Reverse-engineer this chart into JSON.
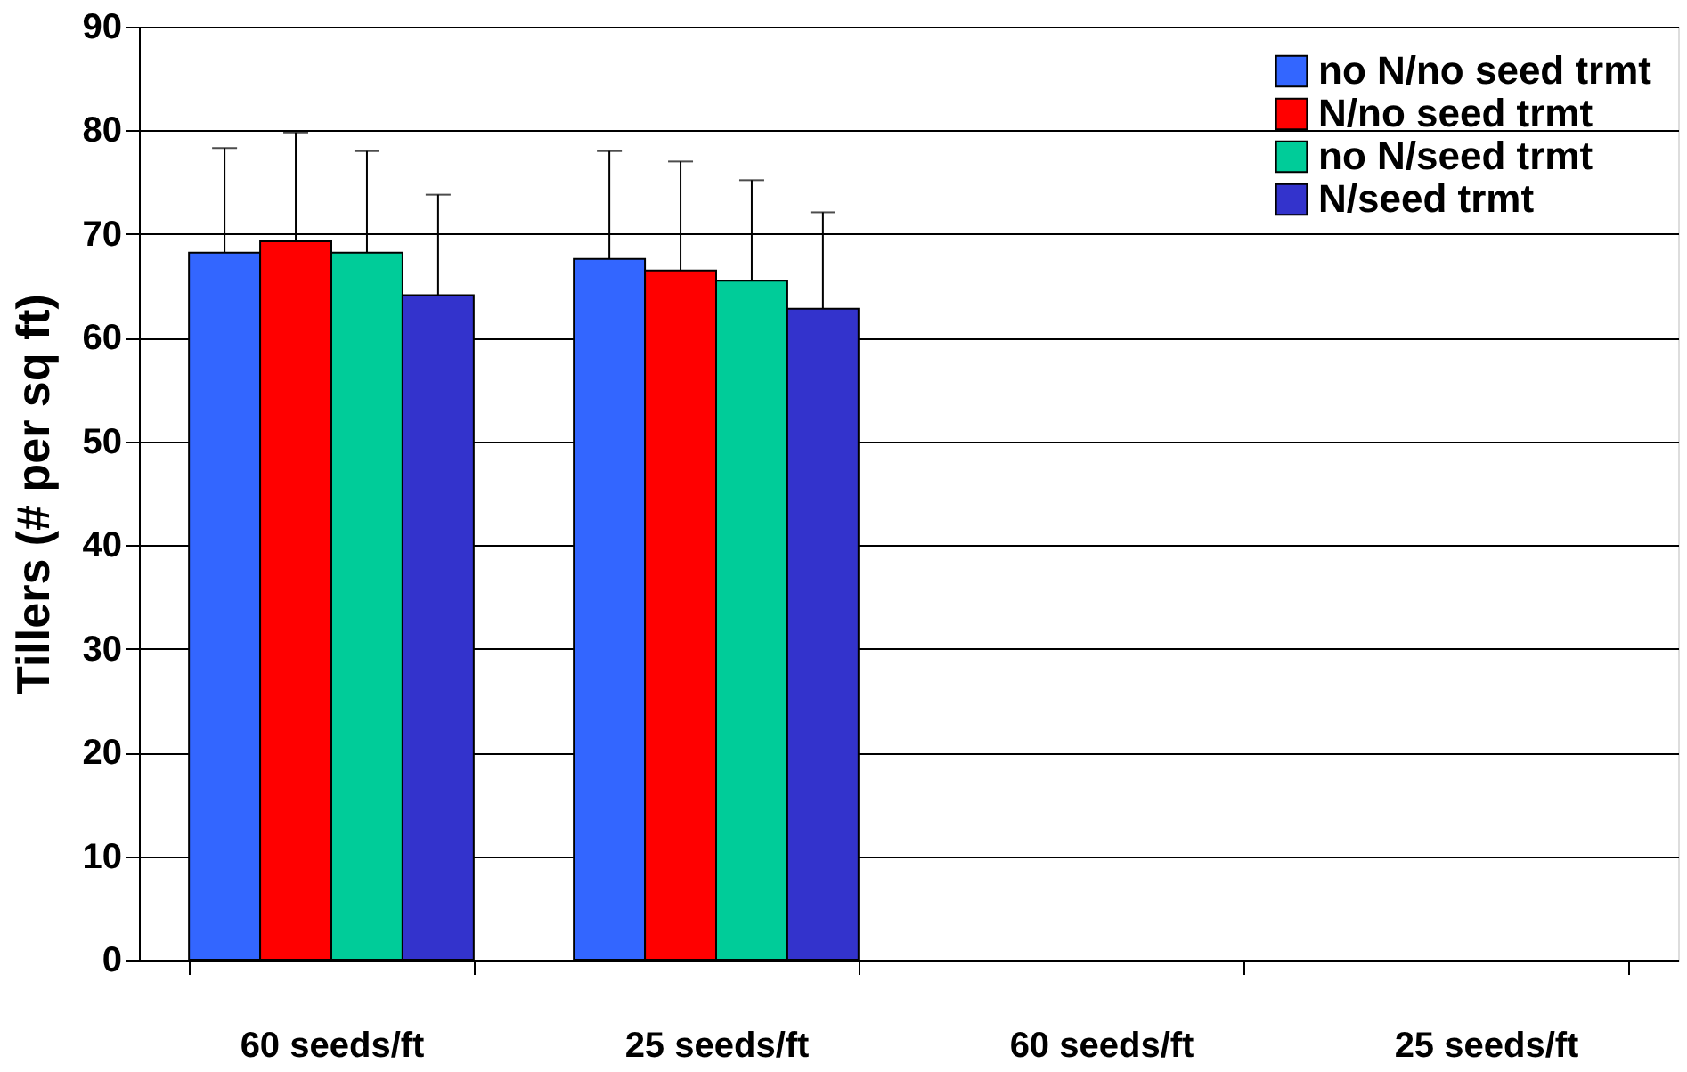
{
  "chart_data": {
    "type": "bar",
    "ylabel": "Tillers (# per sq ft)",
    "categories": [
      "60 seeds/ft",
      "25 seeds/ft",
      "60 seeds/ft",
      "25 seeds/ft"
    ],
    "series": [
      {
        "name": "no N/no seed trmt",
        "color": "#3366ff",
        "values": [
          68.2,
          67.6,
          null,
          null
        ],
        "errors": [
          [
            68.2,
            78.3
          ],
          [
            67.6,
            78.0
          ],
          null,
          null
        ]
      },
      {
        "name": "N/no seed trmt",
        "color": "#ff0000",
        "values": [
          69.3,
          66.5,
          null,
          null
        ],
        "errors": [
          [
            69.3,
            79.8
          ],
          [
            66.5,
            77.0
          ],
          null,
          null
        ]
      },
      {
        "name": "no N/seed trmt",
        "color": "#00cc99",
        "values": [
          68.2,
          65.5,
          null,
          null
        ],
        "errors": [
          [
            68.2,
            78.0
          ],
          [
            65.5,
            75.2
          ],
          null,
          null
        ]
      },
      {
        "name": "N/seed trmt",
        "color": "#3333cc",
        "values": [
          64.1,
          62.8,
          null,
          null
        ],
        "errors": [
          [
            64.1,
            73.8
          ],
          [
            62.8,
            72.1
          ],
          null,
          null
        ]
      }
    ],
    "ylim": [
      0,
      90
    ],
    "yticks": [
      0,
      10,
      20,
      30,
      40,
      50,
      60,
      70,
      80,
      90
    ],
    "grid": "y",
    "legend": "top right"
  }
}
